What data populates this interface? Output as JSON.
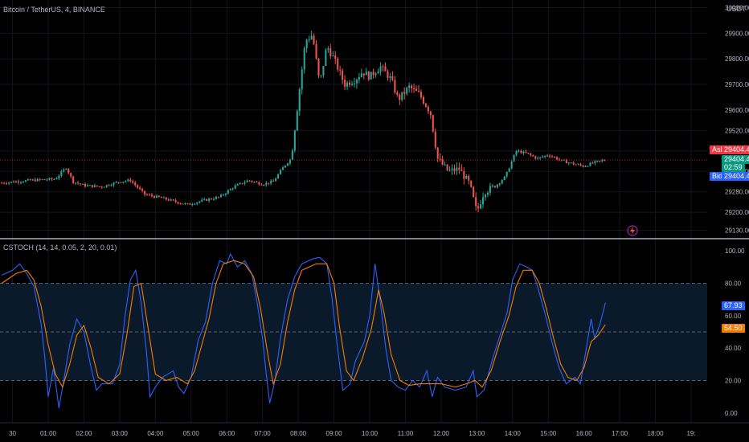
{
  "chart_data": [
    {
      "type": "candlestick",
      "title": "Bitcoin / TetherUS, 4, BINANCE",
      "currency": "USDT",
      "y_ticks": [
        "30000.00",
        "29900.00",
        "29800.00",
        "29700.00",
        "29600.00",
        "29520.00",
        "29440.00",
        "29360.00",
        "29280.00",
        "29200.00",
        "29130.00"
      ],
      "ylim": [
        29100,
        30030
      ],
      "price_tags": {
        "ask_label": "Ask",
        "ask_value": "29404.44",
        "last_value": "29404.44",
        "countdown": "02:59",
        "bid_label": "Bid",
        "bid_value": "29404.43"
      },
      "x_ticks": [
        "30",
        "01:00",
        "02:00",
        "03:00",
        "04:00",
        "05:00",
        "06:00",
        "07:00",
        "08:00",
        "09:00",
        "10:00",
        "11:00",
        "12:00",
        "13:00",
        "14:00",
        "15:00",
        "16:00",
        "17:00",
        "18:00",
        "19:"
      ],
      "x_tick_hours": [
        0,
        1,
        2,
        3,
        4,
        5,
        6,
        7,
        8,
        9,
        10,
        11,
        12,
        13,
        14,
        15,
        16,
        17,
        18,
        19
      ],
      "x_range_hours": [
        -0.35,
        19.45
      ],
      "close_path": [
        [
          -0.3,
          29315
        ],
        [
          0.5,
          29325
        ],
        [
          1.2,
          29330
        ],
        [
          1.5,
          29375
        ],
        [
          1.7,
          29320
        ],
        [
          2.0,
          29305
        ],
        [
          2.5,
          29300
        ],
        [
          3.0,
          29320
        ],
        [
          3.3,
          29325
        ],
        [
          3.7,
          29270
        ],
        [
          4.2,
          29255
        ],
        [
          4.6,
          29240
        ],
        [
          4.9,
          29230
        ],
        [
          5.3,
          29245
        ],
        [
          5.8,
          29260
        ],
        [
          6.2,
          29300
        ],
        [
          6.6,
          29325
        ],
        [
          7.0,
          29310
        ],
        [
          7.3,
          29320
        ],
        [
          7.6,
          29380
        ],
        [
          7.8,
          29410
        ],
        [
          8.0,
          29640
        ],
        [
          8.2,
          29870
        ],
        [
          8.4,
          29895
        ],
        [
          8.6,
          29700
        ],
        [
          8.8,
          29850
        ],
        [
          9.0,
          29800
        ],
        [
          9.3,
          29700
        ],
        [
          9.6,
          29720
        ],
        [
          9.8,
          29750
        ],
        [
          10.0,
          29730
        ],
        [
          10.3,
          29770
        ],
        [
          10.6,
          29720
        ],
        [
          10.8,
          29640
        ],
        [
          11.1,
          29690
        ],
        [
          11.4,
          29660
        ],
        [
          11.7,
          29590
        ],
        [
          11.9,
          29410
        ],
        [
          12.2,
          29360
        ],
        [
          12.5,
          29370
        ],
        [
          12.8,
          29310
        ],
        [
          13.0,
          29200
        ],
        [
          13.2,
          29280
        ],
        [
          13.5,
          29300
        ],
        [
          13.8,
          29340
        ],
        [
          14.1,
          29440
        ],
        [
          14.4,
          29430
        ],
        [
          14.7,
          29410
        ],
        [
          15.0,
          29425
        ],
        [
          15.4,
          29400
        ],
        [
          15.7,
          29390
        ],
        [
          16.0,
          29380
        ],
        [
          16.3,
          29395
        ],
        [
          16.6,
          29405
        ]
      ],
      "candle_step_hours": 0.0667
    },
    {
      "type": "line",
      "title": "CSTOCH (14, 14, 0.05, 2, 20, 0.01)",
      "y_ticks": [
        "100.00",
        "80.00",
        "60.00",
        "40.00",
        "20.00",
        "0.00"
      ],
      "ylim": [
        -6,
        106
      ],
      "bands": {
        "upper": 80,
        "middle": 50,
        "lower": 20
      },
      "series": [
        {
          "name": "",
          "color": "#2962ff",
          "last_label": "67.93",
          "points": [
            [
              -0.3,
              85
            ],
            [
              0.0,
              88
            ],
            [
              0.2,
              92
            ],
            [
              0.4,
              86
            ],
            [
              0.6,
              78
            ],
            [
              0.8,
              55
            ],
            [
              0.9,
              35
            ],
            [
              1.0,
              10
            ],
            [
              1.15,
              28
            ],
            [
              1.3,
              3
            ],
            [
              1.45,
              22
            ],
            [
              1.6,
              42
            ],
            [
              1.8,
              58
            ],
            [
              2.0,
              50
            ],
            [
              2.2,
              28
            ],
            [
              2.35,
              14
            ],
            [
              2.5,
              18
            ],
            [
              2.8,
              18
            ],
            [
              3.0,
              30
            ],
            [
              3.15,
              60
            ],
            [
              3.3,
              82
            ],
            [
              3.45,
              88
            ],
            [
              3.6,
              68
            ],
            [
              3.75,
              38
            ],
            [
              3.85,
              10
            ],
            [
              4.0,
              16
            ],
            [
              4.2,
              22
            ],
            [
              4.5,
              26
            ],
            [
              4.65,
              16
            ],
            [
              4.8,
              12
            ],
            [
              5.0,
              22
            ],
            [
              5.2,
              45
            ],
            [
              5.4,
              56
            ],
            [
              5.6,
              80
            ],
            [
              5.8,
              94
            ],
            [
              6.0,
              92
            ],
            [
              6.1,
              98
            ],
            [
              6.3,
              90
            ],
            [
              6.5,
              94
            ],
            [
              6.7,
              86
            ],
            [
              6.85,
              68
            ],
            [
              7.0,
              46
            ],
            [
              7.1,
              25
            ],
            [
              7.2,
              6
            ],
            [
              7.35,
              20
            ],
            [
              7.5,
              46
            ],
            [
              7.7,
              70
            ],
            [
              7.9,
              84
            ],
            [
              8.1,
              92
            ],
            [
              8.4,
              95
            ],
            [
              8.6,
              96
            ],
            [
              8.8,
              92
            ],
            [
              8.95,
              70
            ],
            [
              9.1,
              40
            ],
            [
              9.25,
              14
            ],
            [
              9.45,
              18
            ],
            [
              9.6,
              32
            ],
            [
              9.85,
              44
            ],
            [
              10.0,
              60
            ],
            [
              10.15,
              92
            ],
            [
              10.3,
              68
            ],
            [
              10.45,
              40
            ],
            [
              10.6,
              20
            ],
            [
              10.8,
              16
            ],
            [
              11.0,
              14
            ],
            [
              11.2,
              20
            ],
            [
              11.4,
              16
            ],
            [
              11.6,
              26
            ],
            [
              11.75,
              10
            ],
            [
              11.9,
              22
            ],
            [
              12.1,
              16
            ],
            [
              12.4,
              14
            ],
            [
              12.7,
              16
            ],
            [
              12.9,
              26
            ],
            [
              13.0,
              10
            ],
            [
              13.2,
              14
            ],
            [
              13.45,
              34
            ],
            [
              13.65,
              48
            ],
            [
              13.85,
              62
            ],
            [
              14.0,
              82
            ],
            [
              14.2,
              92
            ],
            [
              14.4,
              90
            ],
            [
              14.55,
              88
            ],
            [
              14.7,
              78
            ],
            [
              14.9,
              62
            ],
            [
              15.1,
              44
            ],
            [
              15.3,
              28
            ],
            [
              15.5,
              18
            ],
            [
              15.75,
              22
            ],
            [
              15.9,
              18
            ],
            [
              16.05,
              38
            ],
            [
              16.2,
              58
            ],
            [
              16.3,
              46
            ],
            [
              16.45,
              55
            ],
            [
              16.6,
              67.93
            ]
          ]
        },
        {
          "name": "",
          "color": "#f57c00",
          "last_label": "54.50",
          "points": [
            [
              -0.3,
              80
            ],
            [
              0.1,
              86
            ],
            [
              0.4,
              88
            ],
            [
              0.6,
              82
            ],
            [
              0.8,
              66
            ],
            [
              1.0,
              42
            ],
            [
              1.2,
              24
            ],
            [
              1.4,
              16
            ],
            [
              1.6,
              30
            ],
            [
              1.8,
              48
            ],
            [
              2.0,
              54
            ],
            [
              2.2,
              40
            ],
            [
              2.4,
              22
            ],
            [
              2.7,
              18
            ],
            [
              3.0,
              24
            ],
            [
              3.2,
              48
            ],
            [
              3.4,
              78
            ],
            [
              3.6,
              80
            ],
            [
              3.8,
              52
            ],
            [
              4.0,
              24
            ],
            [
              4.3,
              20
            ],
            [
              4.6,
              22
            ],
            [
              4.9,
              18
            ],
            [
              5.1,
              26
            ],
            [
              5.3,
              42
            ],
            [
              5.5,
              58
            ],
            [
              5.7,
              80
            ],
            [
              5.9,
              92
            ],
            [
              6.2,
              94
            ],
            [
              6.5,
              92
            ],
            [
              6.75,
              84
            ],
            [
              6.95,
              64
            ],
            [
              7.15,
              36
            ],
            [
              7.3,
              18
            ],
            [
              7.5,
              30
            ],
            [
              7.7,
              56
            ],
            [
              7.9,
              76
            ],
            [
              8.1,
              88
            ],
            [
              8.5,
              92
            ],
            [
              8.8,
              92
            ],
            [
              9.0,
              80
            ],
            [
              9.15,
              54
            ],
            [
              9.35,
              26
            ],
            [
              9.55,
              20
            ],
            [
              9.8,
              34
            ],
            [
              10.05,
              52
            ],
            [
              10.25,
              76
            ],
            [
              10.4,
              62
            ],
            [
              10.6,
              36
            ],
            [
              10.85,
              20
            ],
            [
              11.1,
              17
            ],
            [
              11.4,
              18
            ],
            [
              11.7,
              18
            ],
            [
              12.0,
              18
            ],
            [
              12.4,
              16
            ],
            [
              12.7,
              18
            ],
            [
              12.95,
              20
            ],
            [
              13.15,
              16
            ],
            [
              13.4,
              26
            ],
            [
              13.65,
              44
            ],
            [
              13.9,
              60
            ],
            [
              14.1,
              78
            ],
            [
              14.3,
              88
            ],
            [
              14.55,
              88
            ],
            [
              14.75,
              80
            ],
            [
              14.95,
              64
            ],
            [
              15.15,
              46
            ],
            [
              15.35,
              30
            ],
            [
              15.55,
              22
            ],
            [
              15.8,
              20
            ],
            [
              16.0,
              28
            ],
            [
              16.2,
              44
            ],
            [
              16.4,
              48
            ],
            [
              16.6,
              54.5
            ]
          ]
        }
      ]
    }
  ],
  "colors": {
    "up": "#26a69a",
    "down": "#ef5350",
    "ask": "#f23645",
    "last": "#089981",
    "bid": "#2962ff",
    "blue_line": "#2962ff",
    "orange_line": "#f57c00",
    "band_fill": "#0b1a2b",
    "grid": "#14161c",
    "axis_text": "#b2b5be"
  }
}
